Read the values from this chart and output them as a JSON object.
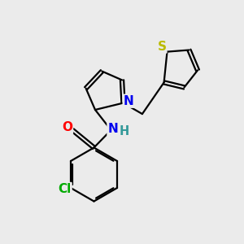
{
  "background_color": "#ebebeb",
  "atom_colors": {
    "C": "#000000",
    "N": "#0000ee",
    "O": "#ff0000",
    "S": "#bbbb00",
    "Cl": "#00aa00",
    "H": "#339999"
  },
  "bond_color": "#000000",
  "bond_width": 1.6,
  "font_size": 10.5,
  "xlim": [
    0,
    10
  ],
  "ylim": [
    0,
    10
  ]
}
